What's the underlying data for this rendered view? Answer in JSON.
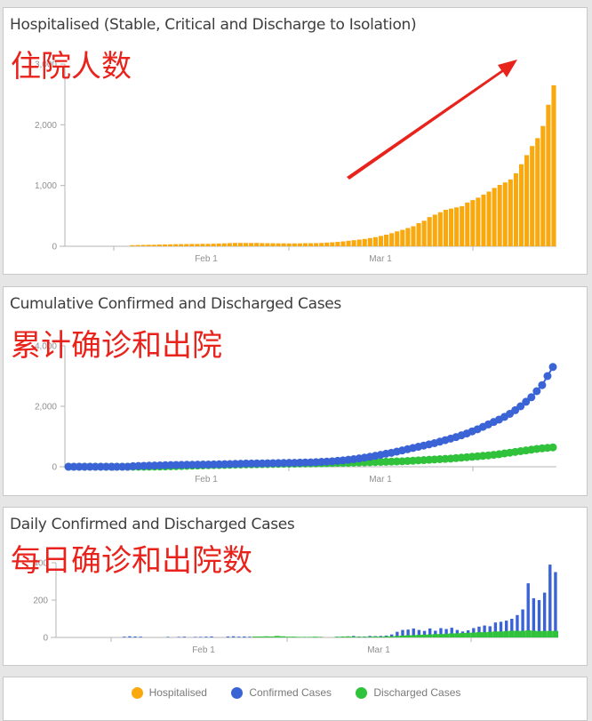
{
  "panels": [
    {
      "title": "Hospitalised (Stable, Critical and Discharge to Isolation)",
      "annotation": "住院人数"
    },
    {
      "title": "Cumulative Confirmed and Discharged Cases",
      "annotation": "累计确诊和出院"
    },
    {
      "title": "Daily Confirmed and Discharged Cases",
      "annotation": "每日确诊和出院数"
    }
  ],
  "legend": [
    {
      "label": "Hospitalised",
      "color": "#f9a80e"
    },
    {
      "label": "Confirmed Cases",
      "color": "#3a63d6"
    },
    {
      "label": "Discharged Cases",
      "color": "#2fc23a"
    }
  ],
  "colors": {
    "hospitalised": "#f9a80e",
    "confirmed": "#3a63d6",
    "discharged": "#2fc23a",
    "arrow": "#e8231c",
    "axis": "#9a9a9a"
  },
  "chart_data": [
    {
      "type": "bar",
      "title": "Hospitalised (Stable, Critical and Discharge to Isolation)",
      "xlabel": "",
      "ylabel": "",
      "x_tick_labels": [
        "Feb 1",
        "Mar 1"
      ],
      "y_ticks": [
        0,
        1000,
        2000,
        3000
      ],
      "y_tick_labels": [
        "0",
        "1,000",
        "2,000",
        "3,000"
      ],
      "ylim": [
        0,
        3000
      ],
      "grid": false,
      "series": [
        {
          "name": "Hospitalised",
          "values": [
            0,
            0,
            0,
            0,
            0,
            0,
            0,
            0,
            0,
            0,
            0,
            0,
            18,
            20,
            22,
            24,
            25,
            28,
            30,
            32,
            34,
            35,
            36,
            38,
            38,
            40,
            40,
            42,
            45,
            48,
            52,
            55,
            55,
            54,
            54,
            55,
            52,
            50,
            50,
            48,
            48,
            47,
            47,
            48,
            50,
            50,
            52,
            55,
            60,
            65,
            72,
            80,
            90,
            100,
            110,
            120,
            135,
            150,
            170,
            190,
            215,
            245,
            270,
            300,
            330,
            380,
            420,
            480,
            520,
            560,
            600,
            620,
            640,
            660,
            720,
            760,
            800,
            850,
            900,
            960,
            1010,
            1050,
            1100,
            1200,
            1350,
            1500,
            1650,
            1780,
            1980,
            2330,
            2650
          ]
        }
      ]
    },
    {
      "type": "scatter",
      "title": "Cumulative Confirmed and Discharged Cases",
      "xlabel": "",
      "ylabel": "",
      "x_tick_labels": [
        "Feb 1",
        "Mar 1"
      ],
      "y_ticks": [
        0,
        2000,
        4000
      ],
      "y_tick_labels": [
        "0",
        "2,000",
        "4,000"
      ],
      "ylim": [
        0,
        4000
      ],
      "grid": false,
      "series": [
        {
          "name": "Confirmed Cases",
          "values": [
            0,
            0,
            0,
            0,
            0,
            0,
            0,
            0,
            0,
            0,
            0,
            0,
            20,
            25,
            30,
            35,
            40,
            45,
            50,
            55,
            60,
            62,
            65,
            68,
            70,
            72,
            75,
            78,
            80,
            85,
            90,
            95,
            100,
            105,
            108,
            110,
            112,
            115,
            118,
            120,
            125,
            128,
            130,
            135,
            140,
            145,
            150,
            160,
            170,
            180,
            195,
            210,
            230,
            250,
            275,
            300,
            330,
            360,
            395,
            430,
            460,
            500,
            540,
            580,
            620,
            660,
            700,
            740,
            780,
            830,
            880,
            930,
            980,
            1040,
            1100,
            1170,
            1240,
            1320,
            1400,
            1480,
            1560,
            1650,
            1750,
            1870,
            2000,
            2150,
            2300,
            2500,
            2700,
            3000,
            3300
          ]
        },
        {
          "name": "Discharged Cases",
          "values": [
            0,
            0,
            0,
            0,
            0,
            0,
            0,
            0,
            0,
            0,
            0,
            0,
            0,
            0,
            0,
            2,
            4,
            6,
            10,
            15,
            20,
            25,
            30,
            35,
            40,
            45,
            50,
            55,
            58,
            62,
            66,
            70,
            74,
            78,
            80,
            84,
            88,
            90,
            92,
            95,
            98,
            100,
            102,
            105,
            108,
            110,
            112,
            115,
            118,
            120,
            125,
            128,
            132,
            136,
            140,
            145,
            150,
            155,
            160,
            165,
            170,
            175,
            180,
            190,
            200,
            210,
            220,
            230,
            240,
            250,
            260,
            270,
            285,
            300,
            315,
            330,
            345,
            360,
            375,
            395,
            415,
            440,
            465,
            490,
            515,
            540,
            565,
            590,
            610,
            625,
            640
          ]
        }
      ]
    },
    {
      "type": "bar",
      "title": "Daily Confirmed and Discharged Cases",
      "xlabel": "",
      "ylabel": "",
      "x_tick_labels": [
        "Feb 1",
        "Mar 1"
      ],
      "y_ticks": [
        0,
        200,
        400
      ],
      "y_tick_labels": [
        "0",
        "200",
        "400"
      ],
      "ylim": [
        0,
        400
      ],
      "grid": false,
      "series": [
        {
          "name": "Confirmed Cases",
          "values": [
            0,
            0,
            0,
            0,
            0,
            0,
            0,
            0,
            0,
            0,
            0,
            0,
            4,
            6,
            5,
            4,
            0,
            0,
            0,
            0,
            3,
            0,
            3,
            4,
            0,
            3,
            3,
            4,
            5,
            0,
            0,
            5,
            6,
            4,
            5,
            4,
            3,
            0,
            0,
            3,
            0,
            0,
            0,
            3,
            0,
            3,
            0,
            0,
            3,
            0,
            0,
            4,
            5,
            6,
            8,
            5,
            5,
            8,
            7,
            8,
            10,
            16,
            30,
            40,
            42,
            48,
            40,
            35,
            48,
            36,
            50,
            45,
            52,
            40,
            32,
            38,
            50,
            58,
            64,
            60,
            80,
            84,
            90,
            100,
            120,
            150,
            290,
            210,
            200,
            240,
            390,
            350
          ]
        },
        {
          "name": "Discharged Cases",
          "values": [
            0,
            0,
            0,
            0,
            0,
            0,
            0,
            0,
            0,
            0,
            0,
            0,
            0,
            0,
            0,
            0,
            0,
            0,
            0,
            0,
            0,
            0,
            0,
            0,
            0,
            0,
            0,
            0,
            0,
            0,
            0,
            0,
            0,
            0,
            0,
            0,
            5,
            5,
            6,
            5,
            8,
            6,
            4,
            4,
            3,
            2,
            3,
            4,
            2,
            0,
            0,
            3,
            4,
            5,
            4,
            3,
            3,
            4,
            5,
            4,
            6,
            6,
            8,
            10,
            12,
            12,
            14,
            15,
            16,
            18,
            18,
            20,
            22,
            22,
            24,
            25,
            26,
            28,
            28,
            30,
            32,
            32,
            34,
            36,
            35,
            35,
            38,
            36,
            34,
            35,
            35,
            35
          ]
        }
      ]
    }
  ]
}
